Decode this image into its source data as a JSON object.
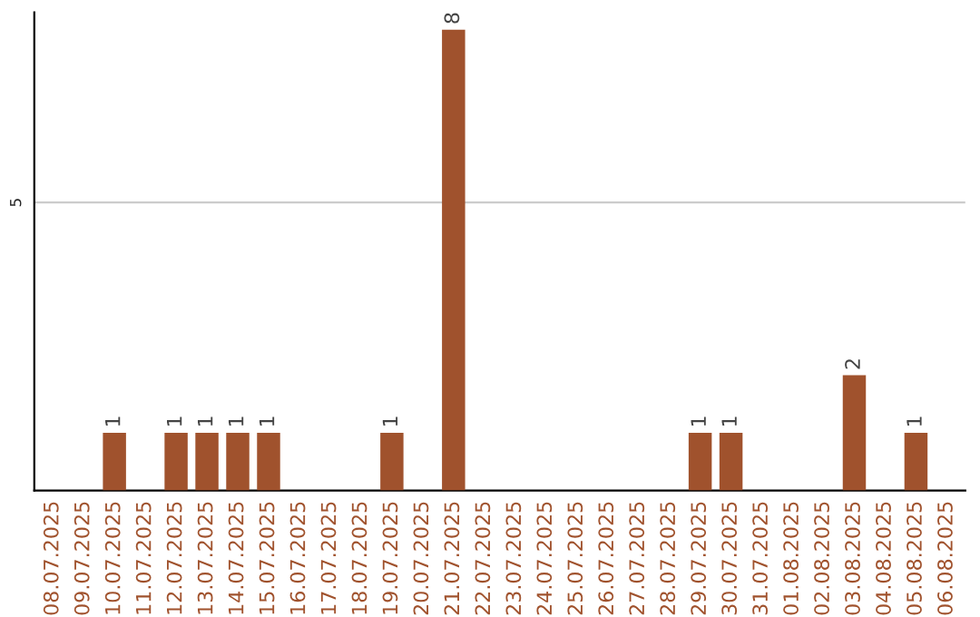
{
  "chart_data": {
    "type": "bar",
    "categories": [
      "08.07.2025",
      "09.07.2025",
      "10.07.2025",
      "11.07.2025",
      "12.07.2025",
      "13.07.2025",
      "14.07.2025",
      "15.07.2025",
      "16.07.2025",
      "17.07.2025",
      "18.07.2025",
      "19.07.2025",
      "20.07.2025",
      "21.07.2025",
      "22.07.2025",
      "23.07.2025",
      "24.07.2025",
      "25.07.2025",
      "26.07.2025",
      "27.07.2025",
      "28.07.2025",
      "29.07.2025",
      "30.07.2025",
      "31.07.2025",
      "01.08.2025",
      "02.08.2025",
      "03.08.2025",
      "04.08.2025",
      "05.08.2025",
      "06.08.2025"
    ],
    "values": [
      0,
      0,
      1,
      0,
      1,
      1,
      1,
      1,
      0,
      0,
      0,
      1,
      0,
      8,
      0,
      0,
      0,
      0,
      0,
      0,
      0,
      1,
      1,
      0,
      0,
      0,
      2,
      0,
      1,
      0
    ],
    "value_labels": [
      null,
      null,
      "1",
      null,
      "1",
      "1",
      "1",
      "1",
      null,
      null,
      null,
      "1",
      null,
      "8",
      null,
      null,
      null,
      null,
      null,
      null,
      null,
      "1",
      "1",
      null,
      null,
      null,
      "2",
      null,
      "1",
      null
    ],
    "color": "#a0522d",
    "ylim": [
      0,
      8.3
    ],
    "yticks": [
      5
    ],
    "grid": "y"
  }
}
